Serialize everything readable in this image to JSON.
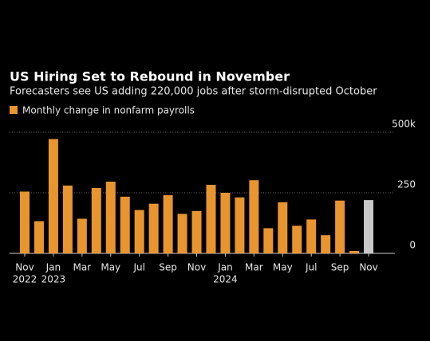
{
  "chart_data": {
    "type": "bar",
    "title": "US Hiring Set to Rebound in November",
    "subtitle": "Forecasters see US adding 220,000 jobs after storm-disrupted October",
    "categories": [
      "Nov",
      null,
      "Jan",
      null,
      "Mar",
      null,
      "May",
      null,
      "Jul",
      null,
      "Sep",
      null,
      "Nov",
      null,
      "Jan",
      null,
      "Mar",
      null,
      "May",
      null,
      "Jul",
      null,
      "Sep",
      null,
      "Nov"
    ],
    "category_years": [
      "2022",
      null,
      "2023",
      null,
      null,
      null,
      null,
      null,
      null,
      null,
      null,
      null,
      null,
      null,
      "2024",
      null,
      null,
      null,
      null,
      null,
      null,
      null,
      null,
      null,
      null
    ],
    "series": [
      {
        "name": "Monthly change in nonfarm payrolls",
        "color": "#e8952f",
        "values": [
          255,
          133,
          472,
          280,
          143,
          270,
          296,
          234,
          179,
          205,
          240,
          163,
          175,
          283,
          250,
          231,
          302,
          104,
          211,
          114,
          140,
          75,
          218,
          10,
          220
        ],
        "colors": [
          "#e8952f",
          "#e8952f",
          "#e8952f",
          "#e8952f",
          "#e8952f",
          "#e8952f",
          "#e8952f",
          "#e8952f",
          "#e8952f",
          "#e8952f",
          "#e8952f",
          "#e8952f",
          "#e8952f",
          "#e8952f",
          "#e8952f",
          "#e8952f",
          "#e8952f",
          "#e8952f",
          "#e8952f",
          "#e8952f",
          "#e8952f",
          "#e8952f",
          "#e8952f",
          "#e8952f",
          "#c8c8c8"
        ]
      }
    ],
    "ylim": [
      0,
      500
    ],
    "yticks": [
      0,
      250,
      {
        "value": 500,
        "label": "500k"
      }
    ],
    "grid": true
  }
}
